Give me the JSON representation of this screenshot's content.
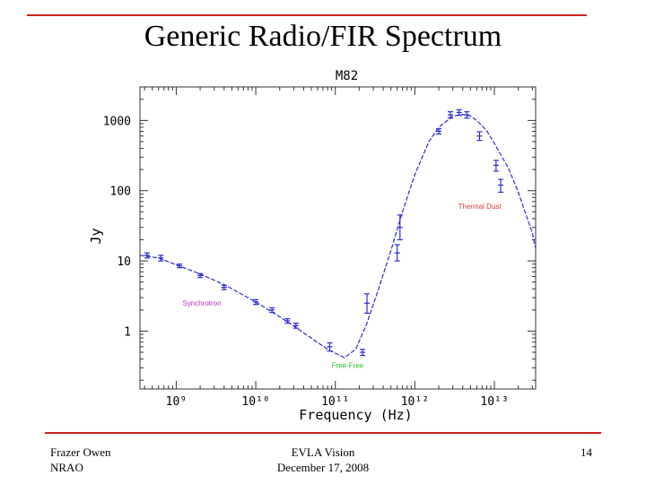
{
  "slide": {
    "title": "Generic Radio/FIR Spectrum",
    "footer_left_line1": "Frazer Owen",
    "footer_left_line2": "NRAO",
    "footer_center_line1": "EVLA Vision",
    "footer_center_line2": "December 17, 2008",
    "page_number": "14",
    "rule_color": "#cc1f1f"
  },
  "chart_data": {
    "type": "line",
    "title": "M82",
    "xlabel": "Frequency (Hz)",
    "ylabel": "Jy",
    "xscale": "log",
    "yscale": "log",
    "xlim": [
      350000000.0,
      33000000000000.0
    ],
    "ylim": [
      0.15,
      3000
    ],
    "x_ticks": [
      {
        "value": 1000000000.0,
        "label": "10⁹"
      },
      {
        "value": 10000000000.0,
        "label": "10¹⁰"
      },
      {
        "value": 100000000000.0,
        "label": "10¹¹"
      },
      {
        "value": 1000000000000.0,
        "label": "10¹²"
      },
      {
        "value": 10000000000000.0,
        "label": "10¹³"
      }
    ],
    "y_ticks": [
      {
        "value": 1,
        "label": "1"
      },
      {
        "value": 10,
        "label": "10"
      },
      {
        "value": 100,
        "label": "100"
      },
      {
        "value": 1000,
        "label": "1000"
      }
    ],
    "series": [
      {
        "name": "",
        "style": "dashed",
        "color": "#2b2bd6",
        "x": [
          350000000.0,
          600000000.0,
          1000000000.0,
          2000000000.0,
          4000000000.0,
          10000000000.0,
          20000000000.0,
          40000000000.0,
          80000000000.0,
          130000000000.0,
          180000000000.0,
          250000000000.0,
          350000000000.0,
          500000000000.0,
          700000000000.0,
          1000000000000.0,
          1500000000000.0,
          2000000000000.0,
          3000000000000.0,
          4000000000000.0,
          5000000000000.0,
          6000000000000.0,
          8000000000000.0,
          10000000000000.0,
          15000000000000.0,
          20000000000000.0,
          30000000000000.0,
          33000000000000.0
        ],
        "y": [
          12,
          11,
          8.8,
          6.5,
          4.6,
          2.6,
          1.6,
          0.95,
          0.55,
          0.42,
          0.55,
          1.3,
          4,
          14,
          50,
          170,
          500,
          800,
          1150,
          1220,
          1150,
          1000,
          720,
          470,
          210,
          95,
          25,
          15
        ]
      }
    ],
    "data_points": {
      "color": "#2b2bd6",
      "x": [
        430000000.0,
        640000000.0,
        1100000000.0,
        2000000000.0,
        4000000000.0,
        10000000000.0,
        16000000000.0,
        25000000000.0,
        32000000000.0,
        85000000000.0,
        220000000000.0,
        250000000000.0,
        600000000000.0,
        650000000000.0,
        2000000000000.0,
        2800000000000.0,
        3600000000000.0,
        4500000000000.0,
        6500000000000.0,
        10500000000000.0,
        12000000000000.0
      ],
      "y": [
        12,
        11,
        8.5,
        6.2,
        4.2,
        2.6,
        2,
        1.4,
        1.2,
        0.6,
        0.5,
        2.5,
        13,
        30,
        700,
        1200,
        1300,
        1200,
        600,
        230,
        120
      ],
      "yerr_low": [
        11,
        10,
        8,
        5.8,
        3.9,
        2.4,
        1.85,
        1.3,
        1.1,
        0.52,
        0.45,
        1.8,
        10,
        20,
        640,
        1080,
        1180,
        1080,
        520,
        190,
        95
      ],
      "yerr_high": [
        13,
        12,
        9,
        6.6,
        4.5,
        2.8,
        2.15,
        1.5,
        1.3,
        0.68,
        0.55,
        3.4,
        17,
        45,
        760,
        1330,
        1420,
        1330,
        690,
        270,
        145
      ]
    },
    "annotations": [
      {
        "text": "Synchrotron",
        "x": 1200000000.0,
        "y": 2.3,
        "color": "#c030c0"
      },
      {
        "text": "Thermal Dust",
        "x": 3500000000000.0,
        "y": 55,
        "color": "#d63a3a"
      },
      {
        "text": "Free-Free",
        "x": 90000000000.0,
        "y": 0.3,
        "color": "#28c028"
      }
    ],
    "grid": false
  }
}
